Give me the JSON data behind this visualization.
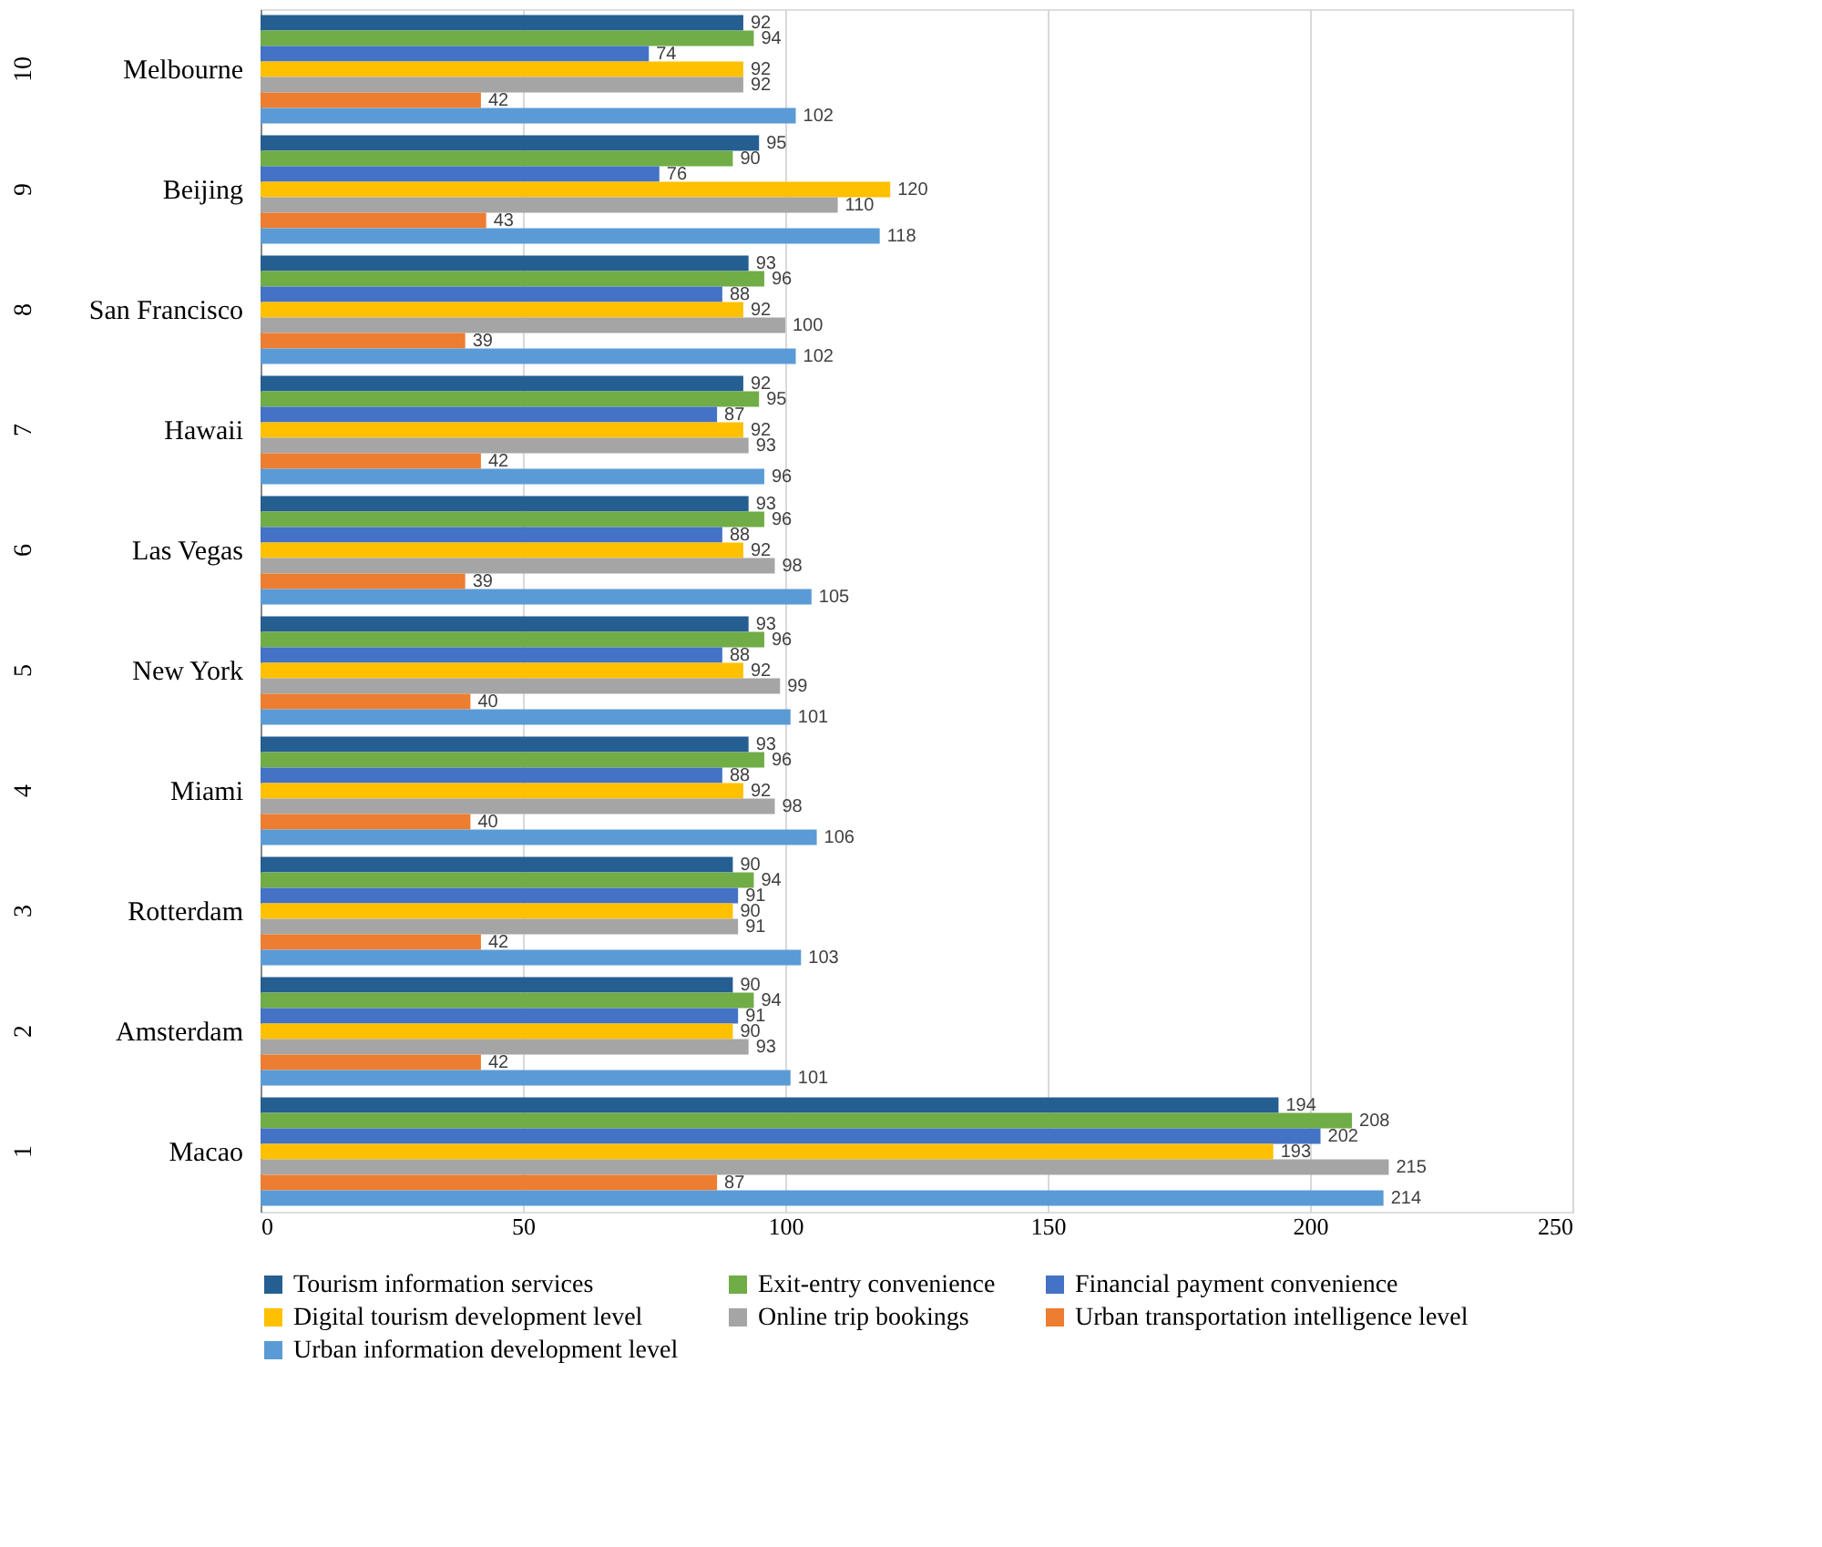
{
  "chart_data": {
    "type": "bar",
    "orientation": "horizontal",
    "categories": [
      "Melbourne",
      "Beijing",
      "San Francisco",
      "Hawaii",
      "Las Vegas",
      "New York",
      "Miami",
      "Rotterdam",
      "Amsterdam",
      "Macao"
    ],
    "series": [
      {
        "name": "Tourism information services",
        "color": "#255e91",
        "values": [
          92,
          95,
          93,
          92,
          93,
          93,
          93,
          90,
          90,
          194
        ]
      },
      {
        "name": "Exit-entry convenience",
        "color": "#70ad47",
        "values": [
          94,
          90,
          96,
          95,
          96,
          96,
          96,
          94,
          94,
          208
        ]
      },
      {
        "name": "Financial payment convenience",
        "color": "#4472c4",
        "values": [
          74,
          76,
          88,
          87,
          88,
          88,
          88,
          91,
          91,
          202
        ]
      },
      {
        "name": "Digital tourism development level",
        "color": "#ffc000",
        "values": [
          92,
          120,
          92,
          92,
          92,
          92,
          92,
          90,
          90,
          193
        ]
      },
      {
        "name": "Online trip bookings",
        "color": "#a5a5a5",
        "values": [
          92,
          110,
          100,
          93,
          98,
          99,
          98,
          91,
          93,
          215
        ]
      },
      {
        "name": "Urban transportation intelligence level",
        "color": "#ed7d31",
        "values": [
          42,
          43,
          39,
          42,
          39,
          40,
          40,
          42,
          42,
          87
        ]
      },
      {
        "name": "Urban information development level",
        "color": "#5b9bd5",
        "values": [
          102,
          118,
          102,
          96,
          105,
          101,
          106,
          103,
          101,
          214
        ]
      }
    ],
    "xlim": [
      0,
      250
    ],
    "xticks": [
      0,
      50,
      100,
      150,
      200,
      250
    ],
    "grid": "x",
    "legend": "bottom",
    "data_labels": true,
    "annotations": [
      "10",
      "9",
      "8",
      "7",
      "6",
      "5",
      "4",
      "3",
      "2",
      "1"
    ]
  }
}
